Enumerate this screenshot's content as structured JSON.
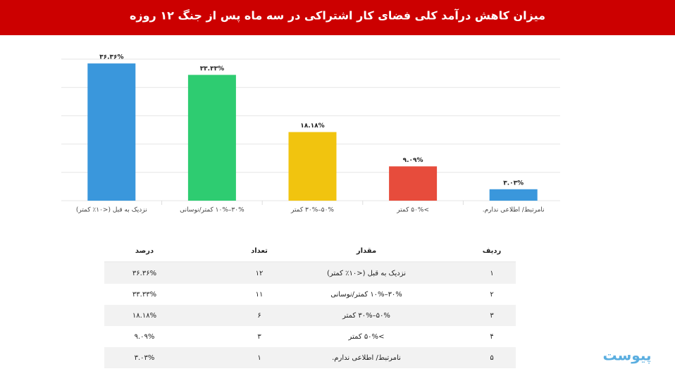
{
  "chart_data": {
    "type": "bar",
    "title": "میزان کاهش درآمد کلی فضای کار اشتراکی در سه ماه پس از جنگ ۱۲ روزه",
    "categories": [
      "نزدیک به قبل (<۱۰٪ کمتر)",
      "۳۰%–۱۰% کمتر/نوسانی",
      "۵۰%–۳۰% کمتر",
      ">۵۰% کمتر",
      "نامرتبط/ اطلاعی ندارم."
    ],
    "values": [
      36.36,
      33.33,
      18.18,
      9.09,
      3.03
    ],
    "value_labels": [
      "۳۶.۳۶%",
      "۳۳.۳۳%",
      "۱۸.۱۸%",
      "۹.۰۹%",
      "۳.۰۳%"
    ],
    "colors": [
      "#3a97dc",
      "#2ecc71",
      "#f1c40f",
      "#e74c3c",
      "#3a97dc"
    ],
    "ylim": [
      0,
      37.5
    ],
    "yticks": [
      0,
      7.5,
      15,
      22.5,
      30,
      37.5
    ],
    "grid": true
  },
  "table": {
    "columns": [
      "ردیف",
      "مقدار",
      "تعداد",
      "درصد"
    ],
    "rows": [
      [
        "۱",
        "نزدیک به قبل (<۱۰٪ کمتر)",
        "۱۲",
        "۳۶.۳۶%"
      ],
      [
        "۲",
        "۳۰%–۱۰% کمتر/نوسانی",
        "۱۱",
        "۳۳.۳۳%"
      ],
      [
        "۳",
        "۵۰%–۳۰% کمتر",
        "۶",
        "۱۸.۱۸%"
      ],
      [
        "۴",
        ">۵۰% کمتر",
        "۳",
        "۹.۰۹%"
      ],
      [
        "۵",
        "نامرتبط/ اطلاعی ندارم.",
        "۱",
        "۳.۰۳%"
      ]
    ]
  },
  "brand": "پیوست"
}
